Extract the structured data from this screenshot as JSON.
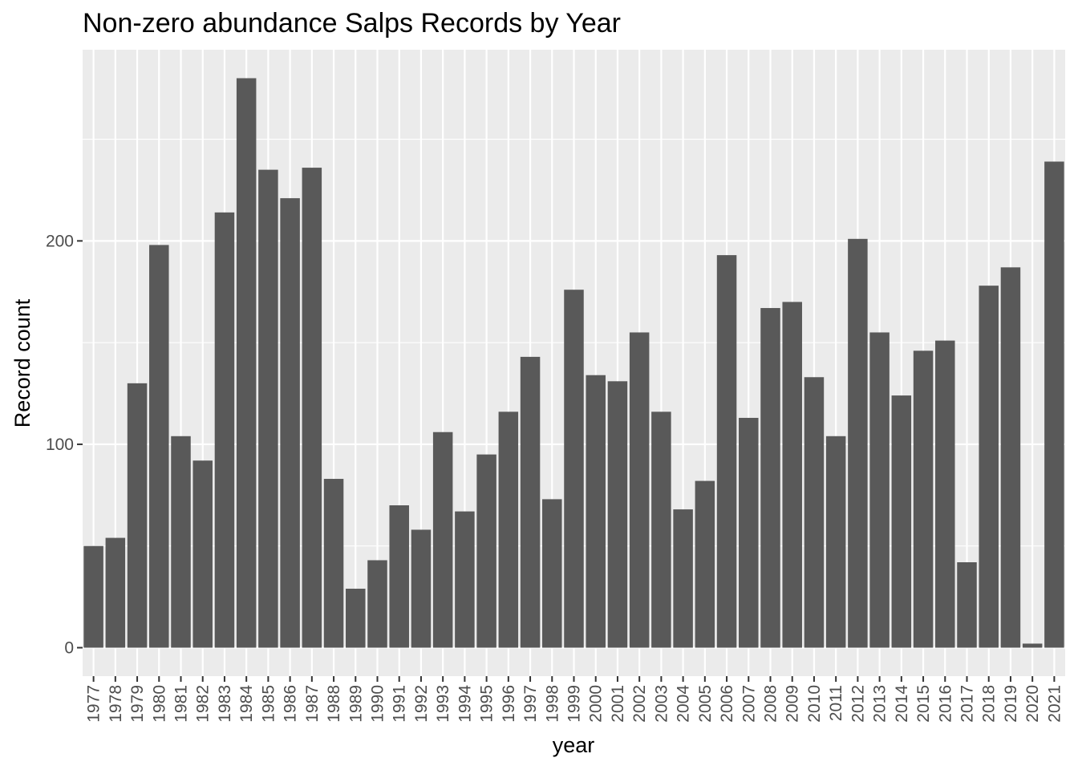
{
  "chart_data": {
    "type": "bar",
    "title": "Non-zero abundance Salps Records by Year",
    "xlabel": "year",
    "ylabel": "Record count",
    "ylim": [
      -14,
      294
    ],
    "yticks": [
      0,
      100,
      200
    ],
    "grid": true,
    "categories": [
      "1977",
      "1978",
      "1979",
      "1980",
      "1981",
      "1982",
      "1983",
      "1984",
      "1985",
      "1986",
      "1987",
      "1988",
      "1989",
      "1990",
      "1991",
      "1992",
      "1993",
      "1994",
      "1995",
      "1996",
      "1997",
      "1998",
      "1999",
      "2000",
      "2001",
      "2002",
      "2003",
      "2004",
      "2005",
      "2006",
      "2007",
      "2008",
      "2009",
      "2010",
      "2011",
      "2012",
      "2013",
      "2014",
      "2015",
      "2016",
      "2017",
      "2018",
      "2019",
      "2020",
      "2021"
    ],
    "values": [
      50,
      54,
      130,
      198,
      104,
      92,
      214,
      280,
      235,
      221,
      236,
      83,
      29,
      43,
      70,
      58,
      106,
      67,
      95,
      116,
      143,
      73,
      176,
      134,
      131,
      155,
      116,
      68,
      82,
      193,
      113,
      167,
      170,
      133,
      104,
      201,
      155,
      124,
      146,
      151,
      42,
      178,
      187,
      2,
      239
    ],
    "colors": {
      "bar": "#595959",
      "panel": "#ebebeb",
      "grid_major": "#ffffff",
      "tick_text": "#4d4d4d",
      "tick_mark": "#333333"
    }
  }
}
